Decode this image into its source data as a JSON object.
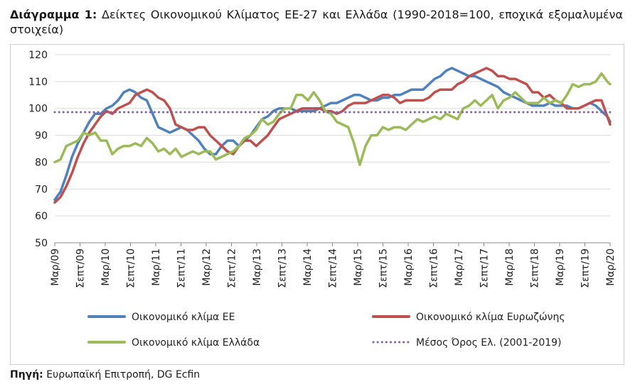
{
  "header": {
    "label": "Διάγραμμα 1:",
    "text": "Δείκτες Οικονομικού Κλίματος ΕΕ-27 και Ελλάδα (1990-2018=100, εποχικά εξομαλυμένα στοιχεία)"
  },
  "source": {
    "label": "Πηγή:",
    "text": "Ευρωπαϊκή Επιτροπή, DG Ecfin"
  },
  "chart_data": {
    "type": "line",
    "title": "Δείκτες Οικονομικού Κλίματος ΕΕ-27 και Ελλάδα (1990-2018=100, εποχικά εξομαλυμένα στοιχεία)",
    "xlabel": "",
    "ylabel": "",
    "ylim": [
      50,
      120
    ],
    "yticks": [
      50,
      60,
      70,
      80,
      90,
      100,
      110,
      120
    ],
    "x_start": "2009-03",
    "x_end": "2020-03",
    "x_tick_labels": [
      "Μαρ/09",
      "Σεπτ/09",
      "Μαρ/10",
      "Σεπτ/10",
      "Μαρ/11",
      "Σεπτ/11",
      "Μαρ/12",
      "Σεπτ/12",
      "Μαρ/13",
      "Σεπτ/13",
      "Μαρ/14",
      "Σεπτ/14",
      "Μαρ/15",
      "Σεπτ/15",
      "Μαρ/16",
      "Σεπτ/16",
      "Μαρ/17",
      "Σεπτ/17",
      "Μαρ/18",
      "Σεπτ/18",
      "Μαρ/19",
      "Σεπτ/19",
      "Μαρ/20"
    ],
    "legend_position": "bottom",
    "series": [
      {
        "name": "Οικονομικό κλίμα ΕΕ",
        "color": "#4f81bd",
        "style": "solid",
        "points": [
          [
            0,
            66
          ],
          [
            2,
            69
          ],
          [
            4,
            75
          ],
          [
            6,
            82
          ],
          [
            8,
            87
          ],
          [
            10,
            91
          ],
          [
            12,
            95
          ],
          [
            14,
            98
          ],
          [
            16,
            98
          ],
          [
            18,
            100
          ],
          [
            20,
            101
          ],
          [
            22,
            103
          ],
          [
            24,
            106
          ],
          [
            26,
            107
          ],
          [
            28,
            106
          ],
          [
            30,
            104
          ],
          [
            32,
            103
          ],
          [
            34,
            98
          ],
          [
            36,
            93
          ],
          [
            38,
            92
          ],
          [
            40,
            91
          ],
          [
            42,
            92
          ],
          [
            44,
            93
          ],
          [
            46,
            92
          ],
          [
            48,
            90
          ],
          [
            50,
            88
          ],
          [
            52,
            85
          ],
          [
            54,
            83
          ],
          [
            56,
            83
          ],
          [
            58,
            86
          ],
          [
            60,
            88
          ],
          [
            62,
            88
          ],
          [
            64,
            86
          ],
          [
            66,
            88
          ],
          [
            68,
            90
          ],
          [
            70,
            93
          ],
          [
            72,
            96
          ],
          [
            74,
            97
          ],
          [
            76,
            99
          ],
          [
            78,
            100
          ],
          [
            80,
            100
          ],
          [
            82,
            100
          ],
          [
            84,
            99
          ],
          [
            86,
            99
          ],
          [
            88,
            99
          ],
          [
            90,
            99
          ],
          [
            92,
            100
          ],
          [
            94,
            101
          ],
          [
            96,
            102
          ],
          [
            98,
            102
          ],
          [
            100,
            103
          ],
          [
            102,
            104
          ],
          [
            104,
            105
          ],
          [
            106,
            105
          ],
          [
            108,
            104
          ],
          [
            110,
            103
          ],
          [
            112,
            103
          ],
          [
            114,
            104
          ],
          [
            116,
            104
          ],
          [
            118,
            105
          ],
          [
            120,
            105
          ],
          [
            122,
            106
          ],
          [
            124,
            107
          ],
          [
            126,
            107
          ],
          [
            128,
            107
          ],
          [
            130,
            109
          ],
          [
            132,
            111
          ],
          [
            134,
            112
          ],
          [
            136,
            114
          ],
          [
            138,
            115
          ],
          [
            140,
            114
          ],
          [
            142,
            113
          ],
          [
            144,
            112
          ],
          [
            146,
            112
          ],
          [
            148,
            111
          ],
          [
            150,
            110
          ],
          [
            152,
            109
          ],
          [
            154,
            108
          ],
          [
            156,
            106
          ],
          [
            158,
            105
          ],
          [
            160,
            104
          ],
          [
            162,
            103
          ],
          [
            164,
            102
          ],
          [
            166,
            101
          ],
          [
            168,
            101
          ],
          [
            170,
            101
          ],
          [
            172,
            102
          ],
          [
            174,
            101
          ],
          [
            176,
            101
          ],
          [
            178,
            101
          ],
          [
            180,
            100
          ],
          [
            182,
            100
          ],
          [
            184,
            101
          ],
          [
            186,
            102
          ],
          [
            188,
            101
          ],
          [
            190,
            99
          ],
          [
            192,
            97
          ],
          [
            193,
            95
          ]
        ]
      },
      {
        "name": "Οικονομικό κλίμα Ευρωζώνης",
        "color": "#c0504d",
        "style": "solid",
        "points": [
          [
            0,
            65
          ],
          [
            2,
            67
          ],
          [
            4,
            71
          ],
          [
            6,
            76
          ],
          [
            8,
            82
          ],
          [
            10,
            87
          ],
          [
            12,
            91
          ],
          [
            14,
            94
          ],
          [
            16,
            97
          ],
          [
            18,
            99
          ],
          [
            20,
            98
          ],
          [
            22,
            100
          ],
          [
            24,
            101
          ],
          [
            26,
            102
          ],
          [
            28,
            105
          ],
          [
            30,
            106
          ],
          [
            32,
            107
          ],
          [
            34,
            106
          ],
          [
            36,
            104
          ],
          [
            38,
            103
          ],
          [
            40,
            100
          ],
          [
            42,
            94
          ],
          [
            44,
            93
          ],
          [
            46,
            92
          ],
          [
            48,
            92
          ],
          [
            50,
            93
          ],
          [
            52,
            93
          ],
          [
            54,
            90
          ],
          [
            56,
            88
          ],
          [
            58,
            86
          ],
          [
            60,
            84
          ],
          [
            62,
            83
          ],
          [
            64,
            86
          ],
          [
            66,
            88
          ],
          [
            68,
            88
          ],
          [
            70,
            86
          ],
          [
            72,
            88
          ],
          [
            74,
            90
          ],
          [
            76,
            93
          ],
          [
            78,
            96
          ],
          [
            80,
            97
          ],
          [
            82,
            98
          ],
          [
            84,
            99
          ],
          [
            86,
            100
          ],
          [
            88,
            100
          ],
          [
            90,
            100
          ],
          [
            92,
            100
          ],
          [
            94,
            99
          ],
          [
            96,
            99
          ],
          [
            98,
            98
          ],
          [
            100,
            99
          ],
          [
            102,
            101
          ],
          [
            104,
            102
          ],
          [
            106,
            102
          ],
          [
            108,
            102
          ],
          [
            110,
            103
          ],
          [
            112,
            104
          ],
          [
            114,
            105
          ],
          [
            116,
            105
          ],
          [
            118,
            104
          ],
          [
            120,
            102
          ],
          [
            122,
            103
          ],
          [
            124,
            103
          ],
          [
            126,
            103
          ],
          [
            128,
            103
          ],
          [
            130,
            104
          ],
          [
            132,
            106
          ],
          [
            134,
            107
          ],
          [
            136,
            107
          ],
          [
            138,
            107
          ],
          [
            140,
            109
          ],
          [
            142,
            110
          ],
          [
            144,
            112
          ],
          [
            146,
            113
          ],
          [
            148,
            114
          ],
          [
            150,
            115
          ],
          [
            152,
            114
          ],
          [
            154,
            112
          ],
          [
            156,
            112
          ],
          [
            158,
            111
          ],
          [
            160,
            111
          ],
          [
            162,
            110
          ],
          [
            164,
            109
          ],
          [
            166,
            106
          ],
          [
            168,
            106
          ],
          [
            170,
            104
          ],
          [
            172,
            105
          ],
          [
            174,
            103
          ],
          [
            176,
            102
          ],
          [
            178,
            100
          ],
          [
            180,
            100
          ],
          [
            182,
            100
          ],
          [
            184,
            101
          ],
          [
            186,
            102
          ],
          [
            188,
            103
          ],
          [
            190,
            103
          ],
          [
            192,
            97
          ],
          [
            193,
            94
          ]
        ]
      },
      {
        "name": "Οικονομικό κλίμα Ελλάδα",
        "color": "#9bbb59",
        "style": "solid",
        "points": [
          [
            0,
            80
          ],
          [
            2,
            81
          ],
          [
            4,
            86
          ],
          [
            6,
            87
          ],
          [
            8,
            88
          ],
          [
            10,
            91
          ],
          [
            12,
            90
          ],
          [
            14,
            91
          ],
          [
            16,
            88
          ],
          [
            18,
            88
          ],
          [
            20,
            83
          ],
          [
            22,
            85
          ],
          [
            24,
            86
          ],
          [
            26,
            86
          ],
          [
            28,
            87
          ],
          [
            30,
            86
          ],
          [
            32,
            89
          ],
          [
            34,
            87
          ],
          [
            36,
            84
          ],
          [
            38,
            85
          ],
          [
            40,
            83
          ],
          [
            42,
            85
          ],
          [
            44,
            82
          ],
          [
            46,
            83
          ],
          [
            48,
            84
          ],
          [
            50,
            83
          ],
          [
            52,
            84
          ],
          [
            54,
            84
          ],
          [
            56,
            81
          ],
          [
            58,
            82
          ],
          [
            60,
            83
          ],
          [
            62,
            84
          ],
          [
            64,
            86
          ],
          [
            66,
            89
          ],
          [
            68,
            90
          ],
          [
            70,
            92
          ],
          [
            72,
            96
          ],
          [
            74,
            94
          ],
          [
            76,
            95
          ],
          [
            78,
            98
          ],
          [
            80,
            100
          ],
          [
            82,
            100
          ],
          [
            84,
            105
          ],
          [
            86,
            105
          ],
          [
            88,
            103
          ],
          [
            90,
            106
          ],
          [
            92,
            103
          ],
          [
            94,
            99
          ],
          [
            96,
            98
          ],
          [
            98,
            95
          ],
          [
            100,
            94
          ],
          [
            102,
            93
          ],
          [
            104,
            87
          ],
          [
            106,
            79
          ],
          [
            108,
            86
          ],
          [
            110,
            90
          ],
          [
            112,
            90
          ],
          [
            114,
            93
          ],
          [
            116,
            92
          ],
          [
            118,
            93
          ],
          [
            120,
            93
          ],
          [
            122,
            92
          ],
          [
            124,
            94
          ],
          [
            126,
            96
          ],
          [
            128,
            95
          ],
          [
            130,
            96
          ],
          [
            132,
            97
          ],
          [
            134,
            96
          ],
          [
            136,
            98
          ],
          [
            138,
            97
          ],
          [
            140,
            96
          ],
          [
            142,
            100
          ],
          [
            144,
            101
          ],
          [
            146,
            103
          ],
          [
            148,
            101
          ],
          [
            150,
            103
          ],
          [
            152,
            105
          ],
          [
            154,
            100
          ],
          [
            156,
            103
          ],
          [
            158,
            104
          ],
          [
            160,
            106
          ],
          [
            162,
            104
          ],
          [
            164,
            102
          ],
          [
            166,
            102
          ],
          [
            168,
            102
          ],
          [
            170,
            104
          ],
          [
            172,
            102
          ],
          [
            174,
            103
          ],
          [
            176,
            102
          ],
          [
            178,
            105
          ],
          [
            180,
            109
          ],
          [
            182,
            108
          ],
          [
            184,
            109
          ],
          [
            186,
            109
          ],
          [
            188,
            110
          ],
          [
            190,
            113
          ],
          [
            192,
            110
          ],
          [
            193,
            109
          ]
        ]
      },
      {
        "name": "Μέσος Όρος Ελ. (2001-2019)",
        "color": "#8064a2",
        "style": "dotted",
        "points": [
          [
            0,
            98.6
          ],
          [
            193,
            98.6
          ]
        ]
      }
    ]
  }
}
